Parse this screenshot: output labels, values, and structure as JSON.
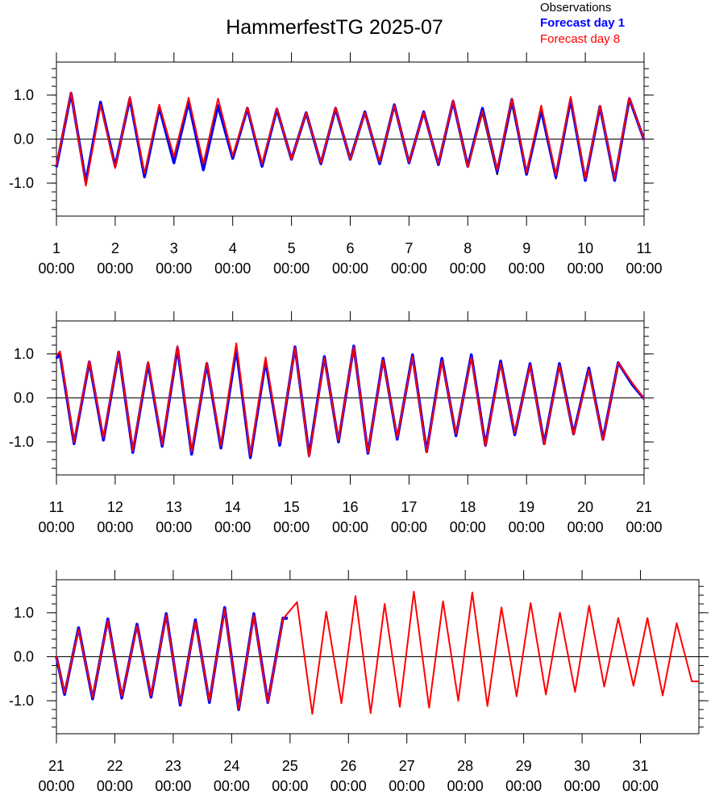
{
  "title": "HammerfestTG 2025-07",
  "legend": [
    {
      "label": "Observations",
      "color": "#000000",
      "bold": false
    },
    {
      "label": "Forecast day 1",
      "color": "#0000ff",
      "bold": true
    },
    {
      "label": "Forecast day 8",
      "color": "#ff0000",
      "bold": false
    }
  ],
  "chart_data": [
    {
      "type": "line",
      "panel": "1-11",
      "x_range_days": [
        1,
        11
      ],
      "ylim": [
        -1.75,
        1.75
      ],
      "yticks": [
        -1.0,
        0.0,
        1.0
      ],
      "ytick_labels": [
        "-1.0",
        "0.0",
        "1.0"
      ],
      "xticks": [
        {
          "day": 1,
          "label": "1",
          "sublabel": "00:00"
        },
        {
          "day": 2,
          "label": "2",
          "sublabel": "00:00"
        },
        {
          "day": 3,
          "label": "3",
          "sublabel": "00:00"
        },
        {
          "day": 4,
          "label": "4",
          "sublabel": "00:00"
        },
        {
          "day": 5,
          "label": "5",
          "sublabel": "00:00"
        },
        {
          "day": 6,
          "label": "6",
          "sublabel": "00:00"
        },
        {
          "day": 7,
          "label": "7",
          "sublabel": "00:00"
        },
        {
          "day": 8,
          "label": "8",
          "sublabel": "00:00"
        },
        {
          "day": 9,
          "label": "9",
          "sublabel": "00:00"
        },
        {
          "day": 10,
          "label": "10",
          "sublabel": "00:00"
        },
        {
          "day": 11,
          "label": "11",
          "sublabel": "00:00"
        }
      ],
      "series": [
        {
          "name": "Observations",
          "color": "#000000",
          "x_day": [
            1.0,
            1.25,
            1.5,
            1.75,
            2.0,
            2.25,
            2.5,
            2.75,
            3.0,
            3.25,
            3.5,
            3.75,
            4.0,
            4.25,
            4.5,
            4.75,
            5.0,
            5.25,
            5.5,
            5.75,
            6.0,
            6.25,
            6.5,
            6.75,
            7.0,
            7.25,
            7.5,
            7.75,
            8.0,
            8.25,
            8.5,
            8.75,
            9.0,
            9.25,
            9.5,
            9.75,
            10.0,
            10.25,
            10.5,
            10.75,
            11.0
          ],
          "y": [
            -0.62,
            1.05,
            -0.98,
            0.82,
            -0.6,
            0.92,
            -0.82,
            0.72,
            -0.5,
            0.82,
            -0.66,
            0.74,
            -0.42,
            0.7,
            -0.6,
            0.68,
            -0.44,
            0.6,
            -0.56,
            0.7,
            -0.44,
            0.62,
            -0.56,
            0.76,
            -0.52,
            0.62,
            -0.56,
            0.86,
            -0.6,
            0.6,
            -0.8,
            0.8,
            -0.78,
            0.66,
            -0.9,
            0.9,
            -0.92,
            0.74,
            -0.94,
            0.92,
            -0.02
          ]
        },
        {
          "name": "Forecast day 1",
          "color": "#0000ff",
          "x_day": [
            1.0,
            1.25,
            1.5,
            1.75,
            2.0,
            2.25,
            2.5,
            2.75,
            3.0,
            3.25,
            3.5,
            3.75,
            4.0,
            4.25,
            4.5,
            4.75,
            5.0,
            5.25,
            5.5,
            5.75,
            6.0,
            6.25,
            6.5,
            6.75,
            7.0,
            7.25,
            7.5,
            7.75,
            8.0,
            8.25,
            8.5,
            8.75,
            9.0,
            9.25,
            9.5,
            9.75,
            10.0,
            10.25,
            10.5,
            10.75,
            11.0
          ],
          "y": [
            -0.64,
            1.04,
            -0.98,
            0.84,
            -0.62,
            0.92,
            -0.86,
            0.72,
            -0.54,
            0.84,
            -0.7,
            0.76,
            -0.44,
            0.7,
            -0.62,
            0.68,
            -0.46,
            0.6,
            -0.56,
            0.7,
            -0.46,
            0.62,
            -0.56,
            0.78,
            -0.54,
            0.62,
            -0.58,
            0.86,
            -0.62,
            0.7,
            -0.74,
            0.9,
            -0.8,
            0.66,
            -0.86,
            0.9,
            -0.94,
            0.74,
            -0.94,
            0.92,
            -0.02
          ]
        },
        {
          "name": "Forecast day 8",
          "color": "#ff0000",
          "x_day": [
            1.0,
            1.25,
            1.5,
            1.75,
            2.0,
            2.25,
            2.5,
            2.75,
            3.0,
            3.25,
            3.5,
            3.75,
            4.0,
            4.25,
            4.5,
            4.75,
            5.0,
            5.25,
            5.5,
            5.75,
            6.0,
            6.25,
            6.5,
            6.75,
            7.0,
            7.25,
            7.5,
            7.75,
            8.0,
            8.25,
            8.5,
            8.75,
            9.0,
            9.25,
            9.5,
            9.75,
            10.0,
            10.25,
            10.5,
            10.75,
            11.0
          ],
          "y": [
            -0.6,
            1.06,
            -1.06,
            0.78,
            -0.66,
            0.96,
            -0.78,
            0.78,
            -0.4,
            0.94,
            -0.56,
            0.92,
            -0.38,
            0.72,
            -0.56,
            0.7,
            -0.46,
            0.6,
            -0.54,
            0.72,
            -0.46,
            0.6,
            -0.52,
            0.76,
            -0.52,
            0.6,
            -0.56,
            0.88,
            -0.64,
            0.64,
            -0.7,
            0.92,
            -0.76,
            0.76,
            -0.82,
            0.96,
            -0.9,
            0.76,
            -0.9,
            0.94,
            -0.02
          ]
        }
      ]
    },
    {
      "type": "line",
      "panel": "11-21",
      "x_range_days": [
        11,
        21
      ],
      "ylim": [
        -1.75,
        1.75
      ],
      "yticks": [
        -1.0,
        0.0,
        1.0
      ],
      "ytick_labels": [
        "-1.0",
        "0.0",
        "1.0"
      ],
      "xticks": [
        {
          "day": 11,
          "label": "11",
          "sublabel": "00:00"
        },
        {
          "day": 12,
          "label": "12",
          "sublabel": "00:00"
        },
        {
          "day": 13,
          "label": "13",
          "sublabel": "00:00"
        },
        {
          "day": 14,
          "label": "14",
          "sublabel": "00:00"
        },
        {
          "day": 15,
          "label": "15",
          "sublabel": "00:00"
        },
        {
          "day": 16,
          "label": "16",
          "sublabel": "00:00"
        },
        {
          "day": 17,
          "label": "17",
          "sublabel": "00:00"
        },
        {
          "day": 18,
          "label": "18",
          "sublabel": "00:00"
        },
        {
          "day": 19,
          "label": "19",
          "sublabel": "00:00"
        },
        {
          "day": 20,
          "label": "20",
          "sublabel": "00:00"
        },
        {
          "day": 21,
          "label": "21",
          "sublabel": "00:00"
        }
      ],
      "series": [
        {
          "name": "Observations",
          "color": "#000000",
          "x_day": [
            11.0,
            11.06,
            11.3,
            11.56,
            11.8,
            12.06,
            12.3,
            12.56,
            12.8,
            13.06,
            13.3,
            13.56,
            13.8,
            14.06,
            14.3,
            14.56,
            14.8,
            15.06,
            15.3,
            15.56,
            15.8,
            16.06,
            16.3,
            16.56,
            16.8,
            17.06,
            17.3,
            17.56,
            17.8,
            18.06,
            18.3,
            18.56,
            18.8,
            19.06,
            19.3,
            19.56,
            19.8,
            20.06,
            20.3,
            20.56,
            20.8,
            21.0
          ],
          "y": [
            0.9,
            1.0,
            -1.02,
            0.82,
            -0.94,
            1.02,
            -1.22,
            0.78,
            -1.08,
            1.14,
            -1.26,
            0.76,
            -1.12,
            1.1,
            -1.34,
            0.84,
            -1.06,
            1.14,
            -1.3,
            0.92,
            -0.98,
            1.16,
            -1.26,
            0.88,
            -0.92,
            0.96,
            -1.2,
            0.88,
            -0.84,
            0.96,
            -1.06,
            0.82,
            -0.82,
            0.76,
            -1.02,
            0.76,
            -0.8,
            0.66,
            -0.92,
            0.78,
            0.3,
            -0.02
          ]
        },
        {
          "name": "Forecast day 1",
          "color": "#0000ff",
          "x_day": [
            11.0,
            11.06,
            11.3,
            11.56,
            11.8,
            12.06,
            12.3,
            12.56,
            12.8,
            13.06,
            13.3,
            13.56,
            13.8,
            14.06,
            14.3,
            14.56,
            14.8,
            15.06,
            15.3,
            15.56,
            15.8,
            16.06,
            16.3,
            16.56,
            16.8,
            17.06,
            17.3,
            17.56,
            17.8,
            18.06,
            18.3,
            18.56,
            18.8,
            19.06,
            19.3,
            19.56,
            19.8,
            20.06,
            20.3,
            20.56,
            20.8,
            21.0
          ],
          "y": [
            0.9,
            1.0,
            -1.04,
            0.82,
            -0.96,
            1.04,
            -1.24,
            0.78,
            -1.1,
            1.14,
            -1.28,
            0.78,
            -1.14,
            1.12,
            -1.36,
            0.84,
            -1.08,
            1.16,
            -1.3,
            0.94,
            -1.0,
            1.18,
            -1.26,
            0.9,
            -0.94,
            0.98,
            -1.22,
            0.9,
            -0.86,
            0.98,
            -1.08,
            0.84,
            -0.84,
            0.78,
            -1.04,
            0.78,
            -0.82,
            0.68,
            -0.94,
            0.8,
            0.3,
            -0.02
          ]
        },
        {
          "name": "Forecast day 8",
          "color": "#ff0000",
          "x_day": [
            11.0,
            11.06,
            11.3,
            11.56,
            11.8,
            12.06,
            12.3,
            12.56,
            12.8,
            13.06,
            13.3,
            13.56,
            13.8,
            14.06,
            14.3,
            14.56,
            14.8,
            15.06,
            15.3,
            15.56,
            15.8,
            16.06,
            16.3,
            16.56,
            16.8,
            17.06,
            17.3,
            17.56,
            17.8,
            18.06,
            18.3,
            18.56,
            18.8,
            19.06,
            19.3,
            19.56,
            19.8,
            20.06,
            20.3,
            20.56,
            20.8,
            21.0
          ],
          "y": [
            0.96,
            1.06,
            -1.0,
            0.84,
            -0.9,
            1.06,
            -1.2,
            0.82,
            -1.06,
            1.18,
            -1.22,
            0.8,
            -1.08,
            1.24,
            -1.3,
            0.92,
            -1.02,
            1.14,
            -1.34,
            0.9,
            -0.96,
            1.16,
            -1.24,
            0.86,
            -0.9,
            0.94,
            -1.24,
            0.84,
            -0.82,
            0.92,
            -1.1,
            0.78,
            -0.8,
            0.74,
            -1.06,
            0.74,
            -0.84,
            0.64,
            -0.96,
            0.8,
            0.34,
            -0.02
          ]
        }
      ]
    },
    {
      "type": "line",
      "panel": "21-31",
      "x_range_days": [
        21,
        32
      ],
      "ylim": [
        -1.75,
        1.75
      ],
      "yticks": [
        -1.0,
        0.0,
        1.0
      ],
      "ytick_labels": [
        "-1.0",
        "0.0",
        "1.0"
      ],
      "xticks": [
        {
          "day": 21,
          "label": "21",
          "sublabel": "00:00"
        },
        {
          "day": 22,
          "label": "22",
          "sublabel": "00:00"
        },
        {
          "day": 23,
          "label": "23",
          "sublabel": "00:00"
        },
        {
          "day": 24,
          "label": "24",
          "sublabel": "00:00"
        },
        {
          "day": 25,
          "label": "25",
          "sublabel": "00:00"
        },
        {
          "day": 26,
          "label": "26",
          "sublabel": "00:00"
        },
        {
          "day": 27,
          "label": "27",
          "sublabel": "00:00"
        },
        {
          "day": 28,
          "label": "28",
          "sublabel": "00:00"
        },
        {
          "day": 29,
          "label": "29",
          "sublabel": "00:00"
        },
        {
          "day": 30,
          "label": "30",
          "sublabel": "00:00"
        },
        {
          "day": 31,
          "label": "31",
          "sublabel": "00:00"
        }
      ],
      "series": [
        {
          "name": "Observations",
          "color": "#000000",
          "x_day": [
            21.0,
            21.14,
            21.38,
            21.62,
            21.88,
            22.12,
            22.38,
            22.62,
            22.88,
            23.12,
            23.38,
            23.62,
            23.88,
            24.12,
            24.38,
            24.62,
            24.88,
            24.96
          ],
          "y": [
            0.0,
            -0.84,
            0.64,
            -0.94,
            0.84,
            -0.92,
            0.72,
            -0.9,
            0.96,
            -1.08,
            0.82,
            -1.02,
            1.1,
            -1.18,
            0.96,
            -1.02,
            0.86,
            0.86
          ]
        },
        {
          "name": "Forecast day 1",
          "color": "#0000ff",
          "x_day": [
            21.0,
            21.14,
            21.38,
            21.62,
            21.88,
            22.12,
            22.38,
            22.62,
            22.88,
            23.12,
            23.38,
            23.62,
            23.88,
            24.12,
            24.38,
            24.62,
            24.88,
            24.96
          ],
          "y": [
            0.0,
            -0.86,
            0.66,
            -0.96,
            0.86,
            -0.94,
            0.74,
            -0.92,
            0.98,
            -1.1,
            0.84,
            -1.04,
            1.12,
            -1.2,
            0.98,
            -1.04,
            0.88,
            0.88
          ]
        },
        {
          "name": "Forecast day 8",
          "color": "#ff0000",
          "x_day": [
            21.0,
            21.14,
            21.38,
            21.62,
            21.88,
            22.12,
            22.38,
            22.62,
            22.88,
            23.12,
            23.38,
            23.62,
            23.88,
            24.12,
            24.38,
            24.62,
            24.88,
            25.12,
            25.38,
            25.62,
            25.88,
            26.12,
            26.38,
            26.62,
            26.88,
            27.12,
            27.38,
            27.62,
            27.88,
            28.12,
            28.38,
            28.62,
            28.88,
            29.12,
            29.38,
            29.62,
            29.88,
            30.12,
            30.38,
            30.62,
            30.88,
            31.12,
            31.38,
            31.62,
            31.88,
            32.0
          ],
          "y": [
            0.0,
            -0.82,
            0.62,
            -0.92,
            0.82,
            -0.9,
            0.7,
            -0.88,
            0.94,
            -1.06,
            0.8,
            -1.0,
            1.08,
            -1.18,
            0.94,
            -1.04,
            0.86,
            1.24,
            -1.3,
            1.02,
            -1.06,
            1.38,
            -1.28,
            1.2,
            -1.14,
            1.48,
            -1.16,
            1.26,
            -1.0,
            1.46,
            -1.12,
            1.12,
            -0.9,
            1.22,
            -0.86,
            1.0,
            -0.8,
            1.16,
            -0.68,
            0.88,
            -0.66,
            0.88,
            -0.88,
            0.76,
            -0.56,
            -0.56
          ]
        }
      ]
    }
  ]
}
